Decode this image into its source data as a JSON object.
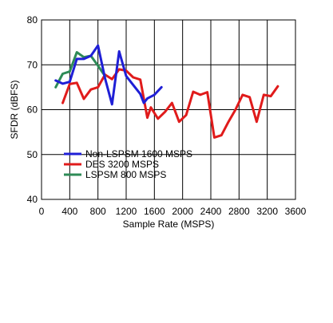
{
  "chart_data": {
    "type": "line",
    "title": "",
    "xlabel": "Sample Rate (MSPS)",
    "ylabel": "SFDR (dBFS)",
    "xlim": [
      0,
      3600
    ],
    "ylim": [
      40,
      80
    ],
    "x_ticks": [
      "0",
      "400",
      "800",
      "1200",
      "1600",
      "2000",
      "2400",
      "2800",
      "3200",
      "3600"
    ],
    "y_ticks": [
      "40",
      "50",
      "60",
      "70",
      "80"
    ],
    "grid": true,
    "legend_position": "lower-left",
    "series": [
      {
        "name": "Non-LSPSM 1600 MSPS",
        "color": "#1f1fd6",
        "points": [
          [
            200,
            66.5
          ],
          [
            300,
            65.8
          ],
          [
            400,
            66.2
          ],
          [
            500,
            71.3
          ],
          [
            600,
            71.3
          ],
          [
            700,
            72
          ],
          [
            800,
            74.3
          ],
          [
            900,
            67
          ],
          [
            1000,
            61.2
          ],
          [
            1100,
            73
          ],
          [
            1200,
            67.5
          ],
          [
            1300,
            65.5
          ],
          [
            1400,
            63.5
          ],
          [
            1450,
            61.5
          ],
          [
            1500,
            62.5
          ],
          [
            1600,
            63.3
          ],
          [
            1700,
            65
          ]
        ]
      },
      {
        "name": "DES 3200 MSPS",
        "color": "#e01b1b",
        "points": [
          [
            300,
            61.5
          ],
          [
            400,
            65.7
          ],
          [
            500,
            66
          ],
          [
            600,
            62.4
          ],
          [
            700,
            64.5
          ],
          [
            800,
            65
          ],
          [
            900,
            67.8
          ],
          [
            1000,
            66.8
          ],
          [
            1100,
            69
          ],
          [
            1200,
            68.7
          ],
          [
            1300,
            67.2
          ],
          [
            1400,
            66.7
          ],
          [
            1500,
            58.2
          ],
          [
            1550,
            60.5
          ],
          [
            1650,
            58
          ],
          [
            1750,
            59.5
          ],
          [
            1850,
            61.5
          ],
          [
            1950,
            57.3
          ],
          [
            2050,
            58.8
          ],
          [
            2150,
            64
          ],
          [
            2250,
            63.3
          ],
          [
            2350,
            63.9
          ],
          [
            2450,
            53.8
          ],
          [
            2550,
            54.3
          ],
          [
            2650,
            57.3
          ],
          [
            2750,
            60
          ],
          [
            2850,
            63.3
          ],
          [
            2950,
            62.8
          ],
          [
            3050,
            57.3
          ],
          [
            3150,
            63.3
          ],
          [
            3250,
            63
          ],
          [
            3350,
            65.2
          ]
        ]
      },
      {
        "name": "LSPSM 800 MSPS",
        "color": "#2e8b57",
        "points": [
          [
            200,
            65
          ],
          [
            300,
            68
          ],
          [
            400,
            68.5
          ],
          [
            500,
            72.8
          ],
          [
            600,
            71.7
          ],
          [
            700,
            72
          ],
          [
            800,
            69.8
          ],
          [
            900,
            67.5
          ]
        ]
      }
    ]
  }
}
